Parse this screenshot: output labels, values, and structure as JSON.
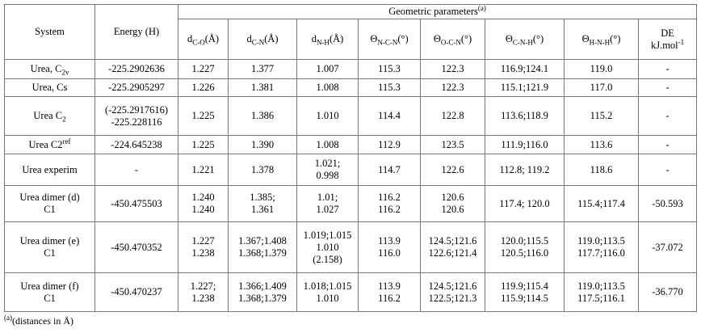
{
  "table": {
    "header": {
      "system": "System",
      "energy": "Energy (H)",
      "group": [
        {
          "text": "Geometric parameters"
        },
        {
          "sup": "(a)"
        }
      ],
      "columns": [
        [
          [
            {
              "text": "d"
            },
            {
              "sub": "C-O"
            },
            {
              "text": "(Å)"
            }
          ]
        ],
        [
          [
            {
              "text": "d"
            },
            {
              "sub": "C-N"
            },
            {
              "text": "(Å)"
            }
          ]
        ],
        [
          [
            {
              "text": "d"
            },
            {
              "sub": "N-H"
            },
            {
              "text": "(Å)"
            }
          ]
        ],
        [
          [
            {
              "text": "Θ"
            },
            {
              "sub": "N-C-N"
            },
            {
              "text": "(°)"
            }
          ]
        ],
        [
          [
            {
              "text": "Θ"
            },
            {
              "sub": "O-C-N"
            },
            {
              "text": "(°)"
            }
          ]
        ],
        [
          [
            {
              "text": "Θ"
            },
            {
              "sub": "C-N-H"
            },
            {
              "text": "(°)"
            }
          ]
        ],
        [
          [
            {
              "text": "Θ"
            },
            {
              "sub": "H-N-H"
            },
            {
              "text": "(°)"
            }
          ]
        ],
        [
          "DE",
          [
            {
              "text": "kJ.mol"
            },
            {
              "sup": "-1"
            }
          ]
        ]
      ]
    },
    "rows": [
      [
        [
          [
            {
              "text": "Urea, C"
            },
            {
              "sub": "2v"
            }
          ]
        ],
        [
          "-225.2902636"
        ],
        [
          "1.227"
        ],
        [
          "1.377"
        ],
        [
          "1.007"
        ],
        [
          "115.3"
        ],
        [
          "122.3"
        ],
        [
          "116.9;124.1"
        ],
        [
          "119.0"
        ],
        [
          "-"
        ]
      ],
      [
        [
          "Urea, Cs"
        ],
        [
          "-225.2905297"
        ],
        [
          "1.226"
        ],
        [
          "1.381"
        ],
        [
          "1.008"
        ],
        [
          "115.3"
        ],
        [
          "122.3"
        ],
        [
          "115.1;121.9"
        ],
        [
          "117.0"
        ],
        [
          "-"
        ]
      ],
      [
        [
          [
            {
              "text": "Urea C"
            },
            {
              "sub": "2"
            }
          ]
        ],
        [
          "(-225.2917616)",
          "-225.228116"
        ],
        [
          "1.225"
        ],
        [
          "1.386"
        ],
        [
          "1.010"
        ],
        [
          "114.4"
        ],
        [
          "122.8"
        ],
        [
          "113.6;118.9"
        ],
        [
          "115.2"
        ],
        [
          "-"
        ]
      ],
      [
        [
          [
            {
              "text": "Urea C2"
            },
            {
              "sup": "ref"
            }
          ]
        ],
        [
          "-224.645238"
        ],
        [
          "1.225"
        ],
        [
          "1.390"
        ],
        [
          "1.008"
        ],
        [
          "112.9"
        ],
        [
          "123.5"
        ],
        [
          "111.9;116.0"
        ],
        [
          "113.6"
        ],
        [
          "-"
        ]
      ],
      [
        [
          "Urea experim"
        ],
        [
          "-"
        ],
        [
          "1.221"
        ],
        [
          "1.378"
        ],
        [
          "1.021;",
          "0.998"
        ],
        [
          "114.7"
        ],
        [
          "122.6"
        ],
        [
          "112.8; 119.2"
        ],
        [
          "118.6"
        ],
        [
          "-"
        ]
      ],
      [
        [
          "Urea dimer (d)",
          "C1"
        ],
        [
          "-450.475503"
        ],
        [
          "1.240",
          "1.240"
        ],
        [
          "1.385;",
          "1.361"
        ],
        [
          "1.01;",
          "1.027"
        ],
        [
          "116.2",
          "116.2"
        ],
        [
          "120.6",
          "120.6"
        ],
        [
          "117.4; 120.0"
        ],
        [
          "115.4;117.4"
        ],
        [
          "-50.593"
        ]
      ],
      [
        [
          "Urea dimer (e)",
          "C1"
        ],
        [
          "-450.470352"
        ],
        [
          "1.227",
          "1.238"
        ],
        [
          "1.367;1.408",
          "1.368;1.379"
        ],
        [
          "1.019;1.015",
          "1.010",
          "(2.158)"
        ],
        [
          "113.9",
          "116.0"
        ],
        [
          "124.5;121.6",
          "122.6;121.4"
        ],
        [
          "120.0;115.5",
          "120.5;116.0"
        ],
        [
          "119.0;113.5",
          "117.7;116.0"
        ],
        [
          "-37.072"
        ]
      ],
      [
        [
          "Urea dimer (f)",
          "C1"
        ],
        [
          "-450.470237"
        ],
        [
          "1.227;",
          "1.238"
        ],
        [
          "1.366;1.409",
          "1.368;1.379"
        ],
        [
          "1.018;1.015",
          "1.010"
        ],
        [
          "113.9",
          "116.2"
        ],
        [
          "124.5;121.6",
          "122.5;121.3"
        ],
        [
          "119.9;115.4",
          "115.9;114.5"
        ],
        [
          "119.0;113.5",
          "117.5;116.1"
        ],
        [
          "-36.770"
        ]
      ]
    ]
  },
  "footnote": [
    {
      "sup": "(a)"
    },
    {
      "text": "(distances in Å)"
    }
  ]
}
